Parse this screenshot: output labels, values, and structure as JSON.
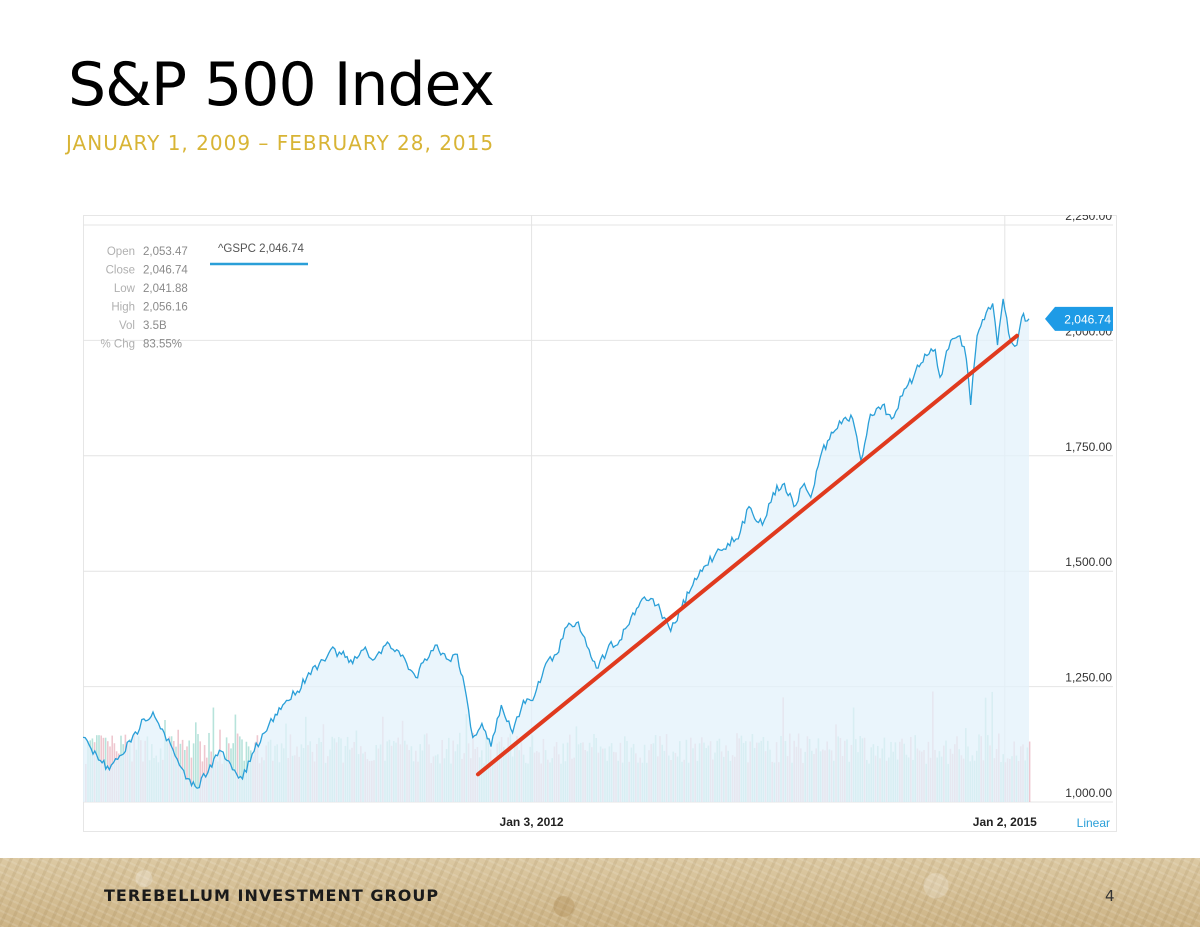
{
  "slide": {
    "title": "S&P 500 Index",
    "subtitle": "JANUARY 1, 2009 – FEBRUARY 28, 2015",
    "footer": "TEREBELLUM INVESTMENT GROUP",
    "page_number": "4"
  },
  "colors": {
    "price_line": "#2a9fd8",
    "area_fill": "#e3f1fb",
    "trend_line": "#e03a1e",
    "volume_up": "#9fd9cf",
    "volume_down": "#e8b4bf",
    "price_badge": "#1e9be6",
    "linear_label": "#2a9fd8",
    "subtitle": "#d8b435"
  },
  "chart_data": {
    "type": "line",
    "symbol_label": "^GSPC 2,046.74",
    "stats": [
      {
        "label": "Open",
        "value": "2,053.47"
      },
      {
        "label": "Close",
        "value": "2,046.74"
      },
      {
        "label": "Low",
        "value": "2,041.88"
      },
      {
        "label": "High",
        "value": "2,056.16"
      },
      {
        "label": "Vol",
        "value": "3.5B"
      },
      {
        "label": "% Chg",
        "value": "83.55%"
      }
    ],
    "current_price_label": "2,046.74",
    "current_price": 2046.74,
    "scale_label": "Linear",
    "y_ticks": [
      {
        "value": 2250,
        "label": "2,250.00"
      },
      {
        "value": 2000,
        "label": "2,000.00"
      },
      {
        "value": 1750,
        "label": "1,750.00"
      },
      {
        "value": 1500,
        "label": "1,500.00"
      },
      {
        "value": 1250,
        "label": "1,250.00"
      },
      {
        "value": 1000,
        "label": "1,000.00"
      }
    ],
    "ylim": [
      1000,
      2250
    ],
    "xlim": [
      "2009-03-01",
      "2015-02-27"
    ],
    "x_ticks": [
      {
        "date": "2012-01-03",
        "label": "Jan 3, 2012"
      },
      {
        "date": "2015-01-02",
        "label": "Jan 2, 2015"
      }
    ],
    "grid": true,
    "series": [
      {
        "type": "line",
        "area": true,
        "points": [
          [
            "2009-03-01",
            1140
          ],
          [
            "2009-03-20",
            1115
          ],
          [
            "2009-04-10",
            1090
          ],
          [
            "2009-05-01",
            1070
          ],
          [
            "2009-05-25",
            1100
          ],
          [
            "2009-06-20",
            1130
          ],
          [
            "2009-07-20",
            1180
          ],
          [
            "2009-08-10",
            1195
          ],
          [
            "2009-09-05",
            1150
          ],
          [
            "2009-09-30",
            1100
          ],
          [
            "2009-10-25",
            1050
          ],
          [
            "2009-11-20",
            1030
          ],
          [
            "2009-12-20",
            1080
          ],
          [
            "2010-01-15",
            1110
          ],
          [
            "2010-02-10",
            1070
          ],
          [
            "2010-03-05",
            1050
          ],
          [
            "2010-04-01",
            1110
          ],
          [
            "2010-04-25",
            1150
          ],
          [
            "2010-05-20",
            1190
          ],
          [
            "2010-06-15",
            1220
          ],
          [
            "2010-07-10",
            1240
          ],
          [
            "2010-08-05",
            1280
          ],
          [
            "2010-08-30",
            1300
          ],
          [
            "2010-09-25",
            1330
          ],
          [
            "2010-10-20",
            1320
          ],
          [
            "2010-11-15",
            1300
          ],
          [
            "2010-12-10",
            1330
          ],
          [
            "2011-01-05",
            1310
          ],
          [
            "2011-01-30",
            1340
          ],
          [
            "2011-02-25",
            1330
          ],
          [
            "2011-03-20",
            1300
          ],
          [
            "2011-04-10",
            1270
          ],
          [
            "2011-05-01",
            1310
          ],
          [
            "2011-05-25",
            1340
          ],
          [
            "2011-06-20",
            1310
          ],
          [
            "2011-07-15",
            1320
          ],
          [
            "2011-08-05",
            1230
          ],
          [
            "2011-08-20",
            1140
          ],
          [
            "2011-09-10",
            1170
          ],
          [
            "2011-10-01",
            1120
          ],
          [
            "2011-10-25",
            1210
          ],
          [
            "2011-11-20",
            1150
          ],
          [
            "2011-12-15",
            1220
          ],
          [
            "2012-01-10",
            1230
          ],
          [
            "2012-02-05",
            1300
          ],
          [
            "2012-03-01",
            1320
          ],
          [
            "2012-03-25",
            1380
          ],
          [
            "2012-04-20",
            1390
          ],
          [
            "2012-05-15",
            1330
          ],
          [
            "2012-06-05",
            1290
          ],
          [
            "2012-06-30",
            1340
          ],
          [
            "2012-07-25",
            1350
          ],
          [
            "2012-08-20",
            1400
          ],
          [
            "2012-09-15",
            1440
          ],
          [
            "2012-10-10",
            1440
          ],
          [
            "2012-11-05",
            1400
          ],
          [
            "2012-11-20",
            1370
          ],
          [
            "2012-12-15",
            1420
          ],
          [
            "2013-01-10",
            1470
          ],
          [
            "2013-02-05",
            1510
          ],
          [
            "2013-03-05",
            1540
          ],
          [
            "2013-04-01",
            1560
          ],
          [
            "2013-04-25",
            1570
          ],
          [
            "2013-05-20",
            1640
          ],
          [
            "2013-06-20",
            1600
          ],
          [
            "2013-07-15",
            1670
          ],
          [
            "2013-08-10",
            1690
          ],
          [
            "2013-09-01",
            1640
          ],
          [
            "2013-09-25",
            1690
          ],
          [
            "2013-10-10",
            1660
          ],
          [
            "2013-11-05",
            1760
          ],
          [
            "2013-12-01",
            1800
          ],
          [
            "2013-12-25",
            1830
          ],
          [
            "2014-01-15",
            1830
          ],
          [
            "2014-02-03",
            1740
          ],
          [
            "2014-02-25",
            1840
          ],
          [
            "2014-03-25",
            1860
          ],
          [
            "2014-04-15",
            1830
          ],
          [
            "2014-05-10",
            1880
          ],
          [
            "2014-06-05",
            1920
          ],
          [
            "2014-07-01",
            1970
          ],
          [
            "2014-07-25",
            1980
          ],
          [
            "2014-08-05",
            1920
          ],
          [
            "2014-08-30",
            2000
          ],
          [
            "2014-09-20",
            2010
          ],
          [
            "2014-10-05",
            1960
          ],
          [
            "2014-10-15",
            1860
          ],
          [
            "2014-10-30",
            2010
          ],
          [
            "2014-11-20",
            2060
          ],
          [
            "2014-12-05",
            2080
          ],
          [
            "2014-12-16",
            1990
          ],
          [
            "2014-12-29",
            2090
          ],
          [
            "2015-01-15",
            2000
          ],
          [
            "2015-01-30",
            1990
          ],
          [
            "2015-02-10",
            2050
          ],
          [
            "2015-02-27",
            2046.74
          ]
        ]
      },
      {
        "type": "trendline",
        "points": [
          [
            "2011-09-01",
            1060
          ],
          [
            "2015-01-30",
            2010
          ]
        ]
      },
      {
        "type": "volume",
        "baseline_level": 0.55,
        "spike_level": 0.95
      }
    ]
  }
}
